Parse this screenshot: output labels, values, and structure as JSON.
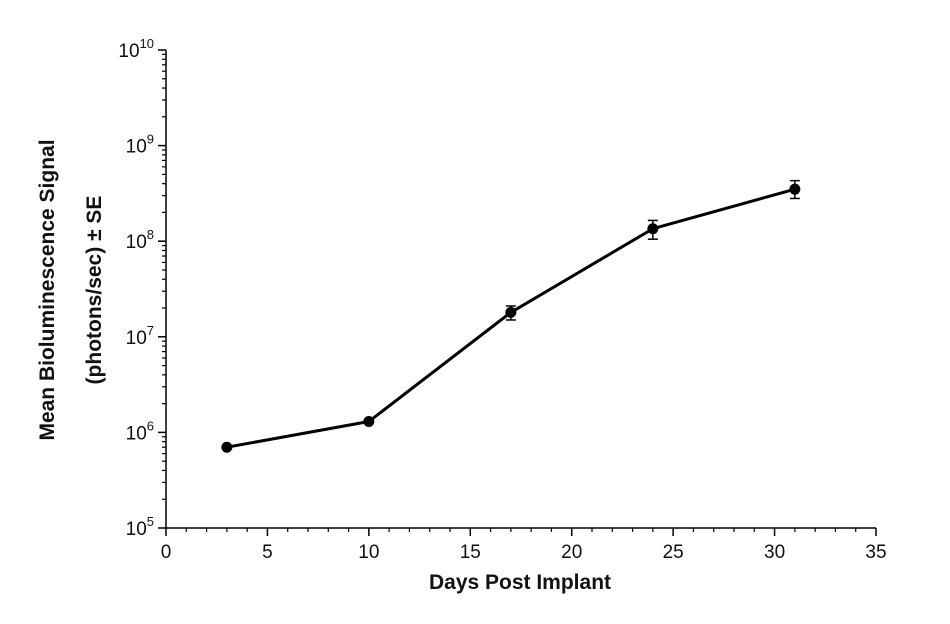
{
  "chart_data": {
    "type": "line",
    "title": "",
    "xlabel": "Days Post Implant",
    "ylabel_line1": "Mean Bioluminescence Signal",
    "ylabel_line2": "(photons/sec) ± SE",
    "xlim": [
      0,
      35
    ],
    "ylim": [
      100000,
      10000000000
    ],
    "y_scale": "log",
    "x_ticks": [
      0,
      5,
      10,
      15,
      20,
      25,
      30,
      35
    ],
    "x_tick_labels": [
      "0",
      "5",
      "10",
      "15",
      "20",
      "25",
      "30",
      "35"
    ],
    "y_ticks": [
      {
        "value": 100000,
        "base": "10",
        "exp": "5"
      },
      {
        "value": 1000000,
        "base": "10",
        "exp": "6"
      },
      {
        "value": 10000000,
        "base": "10",
        "exp": "7"
      },
      {
        "value": 100000000,
        "base": "10",
        "exp": "8"
      },
      {
        "value": 1000000000,
        "base": "10",
        "exp": "9"
      },
      {
        "value": 10000000000,
        "base": "10",
        "exp": "10"
      }
    ],
    "grid": false,
    "series": [
      {
        "x": [
          3,
          10,
          17,
          24,
          31
        ],
        "y": [
          700000,
          1300000,
          18000000,
          135000000,
          350000000
        ],
        "error": [
          [
            700000,
            700000
          ],
          [
            1300000,
            1300000
          ],
          [
            15000000,
            21000000
          ],
          [
            105000000,
            165000000
          ],
          [
            280000000,
            430000000
          ]
        ],
        "color": "#000000"
      }
    ]
  }
}
